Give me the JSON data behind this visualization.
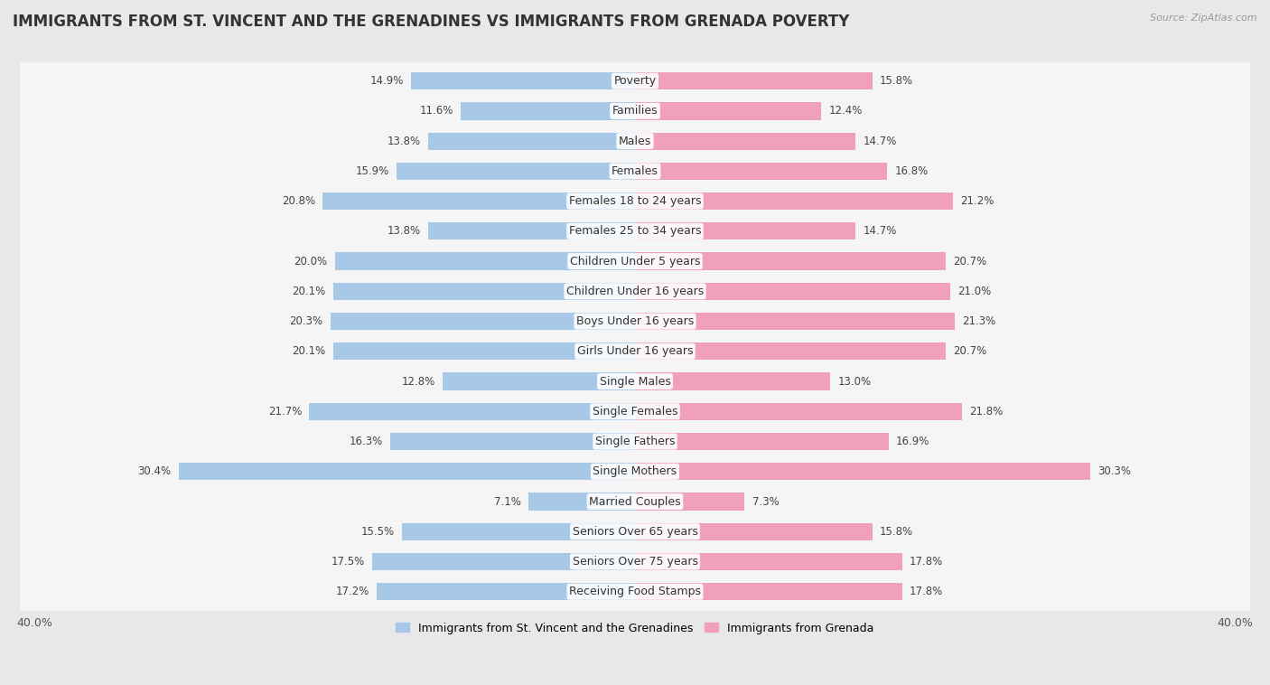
{
  "title": "IMMIGRANTS FROM ST. VINCENT AND THE GRENADINES VS IMMIGRANTS FROM GRENADA POVERTY",
  "source": "Source: ZipAtlas.com",
  "categories": [
    "Poverty",
    "Families",
    "Males",
    "Females",
    "Females 18 to 24 years",
    "Females 25 to 34 years",
    "Children Under 5 years",
    "Children Under 16 years",
    "Boys Under 16 years",
    "Girls Under 16 years",
    "Single Males",
    "Single Females",
    "Single Fathers",
    "Single Mothers",
    "Married Couples",
    "Seniors Over 65 years",
    "Seniors Over 75 years",
    "Receiving Food Stamps"
  ],
  "left_values": [
    14.9,
    11.6,
    13.8,
    15.9,
    20.8,
    13.8,
    20.0,
    20.1,
    20.3,
    20.1,
    12.8,
    21.7,
    16.3,
    30.4,
    7.1,
    15.5,
    17.5,
    17.2
  ],
  "right_values": [
    15.8,
    12.4,
    14.7,
    16.8,
    21.2,
    14.7,
    20.7,
    21.0,
    21.3,
    20.7,
    13.0,
    21.8,
    16.9,
    30.3,
    7.3,
    15.8,
    17.8,
    17.8
  ],
  "left_color": "#a8c8e8",
  "right_color": "#f0a0b8",
  "background_color": "#e8e8e8",
  "bar_background": "#f5f5f5",
  "max_val": 40.0,
  "legend_left": "Immigrants from St. Vincent and the Grenadines",
  "legend_right": "Immigrants from Grenada",
  "title_fontsize": 12,
  "label_fontsize": 9,
  "value_fontsize": 8.5,
  "axis_fontsize": 9
}
